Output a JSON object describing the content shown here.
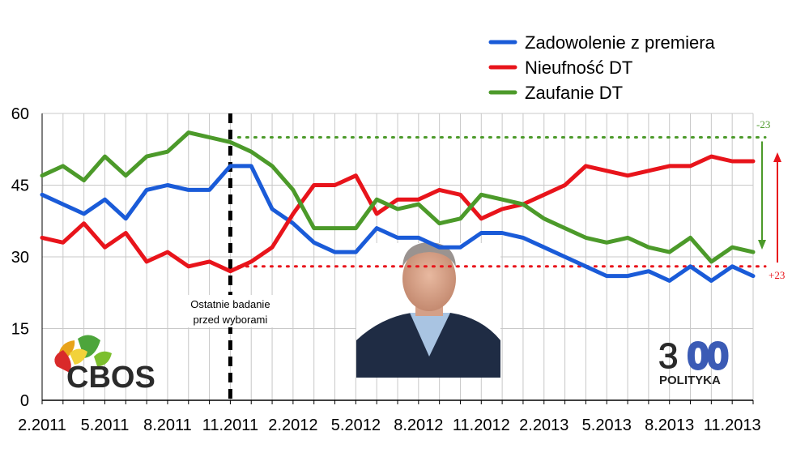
{
  "chart_data": {
    "type": "line",
    "ylim": [
      0,
      60
    ],
    "yticks": [
      0,
      15,
      30,
      45,
      60
    ],
    "xlabels": [
      "2.2011",
      "5.2011",
      "8.2011",
      "11.2011",
      "2.2012",
      "5.2012",
      "8.2012",
      "11.2012",
      "2.2013",
      "5.2013",
      "8.2013",
      "11.2013"
    ],
    "grid": true,
    "legend_position": "top-right",
    "series": [
      {
        "name": "Zadowolenie z premiera",
        "color": "#1a5bd8",
        "values": [
          43,
          41,
          39,
          42,
          38,
          44,
          45,
          44,
          44,
          49,
          49,
          40,
          37,
          33,
          31,
          31,
          36,
          34,
          34,
          32,
          32,
          35,
          35,
          34,
          32,
          30,
          28,
          26,
          26,
          27,
          25,
          28,
          25,
          28,
          26
        ]
      },
      {
        "name": "Nieufność DT",
        "color": "#e8141b",
        "values": [
          34,
          33,
          37,
          32,
          35,
          29,
          31,
          28,
          29,
          27,
          29,
          32,
          39,
          45,
          45,
          47,
          39,
          42,
          42,
          44,
          43,
          38,
          40,
          41,
          43,
          45,
          49,
          48,
          47,
          48,
          49,
          49,
          51,
          50,
          50
        ]
      },
      {
        "name": "Zaufanie DT",
        "color": "#4c9a2a",
        "values": [
          47,
          49,
          46,
          51,
          47,
          51,
          52,
          56,
          55,
          54,
          52,
          49,
          44,
          36,
          36,
          36,
          42,
          40,
          41,
          37,
          38,
          43,
          42,
          41,
          38,
          36,
          34,
          33,
          34,
          32,
          31,
          34,
          29,
          32,
          31
        ]
      }
    ],
    "annotations": {
      "election_note_line1": "Ostatnie badanie",
      "election_note_line2": "przed wyborami",
      "election_index": 9,
      "green_ref_value": 55,
      "red_ref_value": 28,
      "green_change": "-23",
      "red_change": "+23"
    }
  },
  "logos": {
    "cbos": "CBOS",
    "polityka_number": "300",
    "polityka_name": "POLITYKA"
  },
  "colors": {
    "blue": "#1a5bd8",
    "red": "#e8141b",
    "green": "#4c9a2a",
    "grid": "#c8c8c8"
  }
}
